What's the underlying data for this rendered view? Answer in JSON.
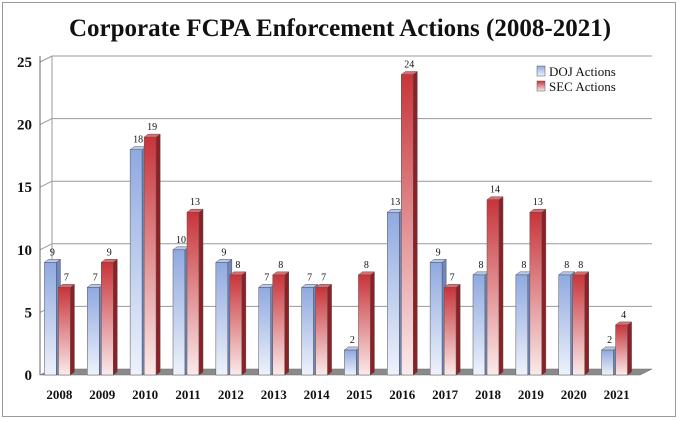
{
  "chart_data": {
    "type": "bar",
    "title": "Corporate FCPA Enforcement Actions (2008-2021)",
    "categories": [
      "2008",
      "2009",
      "2010",
      "2011",
      "2012",
      "2013",
      "2014",
      "2015",
      "2016",
      "2017",
      "2018",
      "2019",
      "2020",
      "2021"
    ],
    "series": [
      {
        "name": "DOJ Actions",
        "values": [
          9,
          7,
          18,
          10,
          9,
          7,
          7,
          2,
          13,
          9,
          8,
          8,
          8,
          2
        ],
        "color": "#8fa9e0"
      },
      {
        "name": "SEC Actions",
        "values": [
          7,
          9,
          19,
          13,
          8,
          8,
          7,
          8,
          24,
          7,
          14,
          13,
          8,
          4
        ],
        "color": "#c8343a"
      }
    ],
    "ylim": [
      0,
      25
    ],
    "yticks": [
      0,
      5,
      10,
      15,
      20,
      25
    ],
    "grid": true,
    "legend_position": "top-right"
  }
}
